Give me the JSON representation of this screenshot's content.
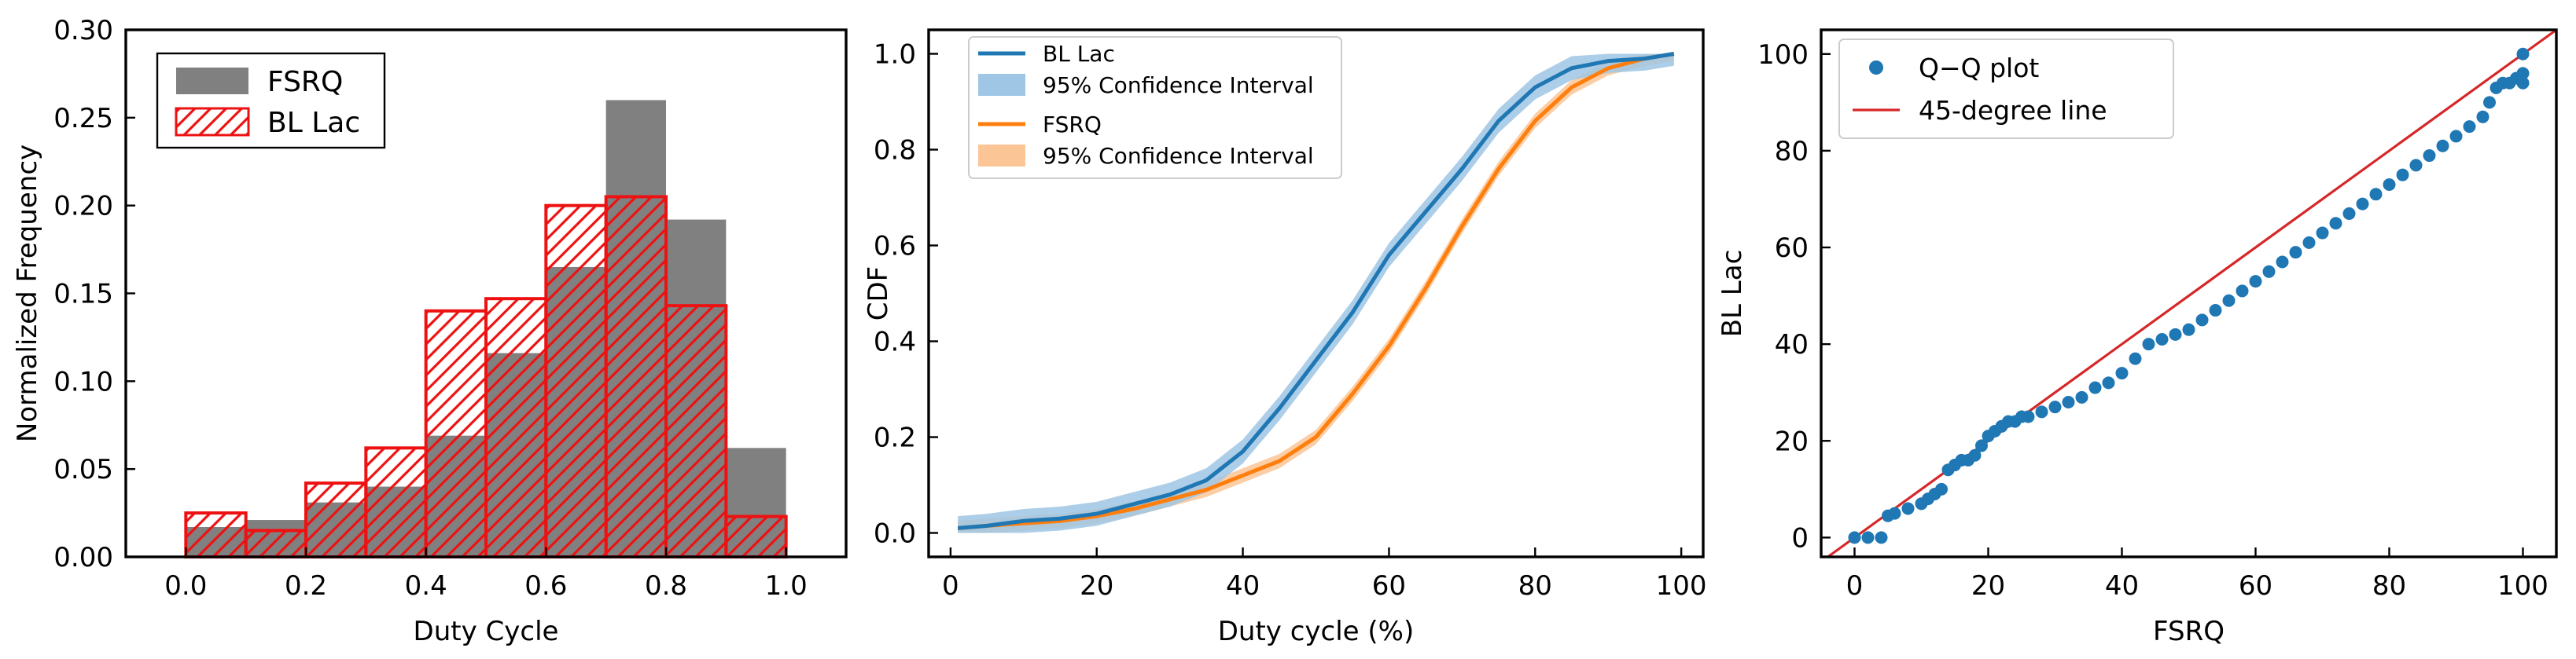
{
  "colors": {
    "fsrq_hist": "#808080",
    "bllac_hist": "#ee1111",
    "blue": "#1f77b4",
    "blue_band": "#9fc6e4",
    "orange": "#ff7f0e",
    "orange_band": "#fcc596",
    "diag_line": "#d62728"
  },
  "chart_data": [
    {
      "type": "bar",
      "xlabel": "Duty Cycle",
      "ylabel": "Normalized Frequency",
      "xlim": [
        -0.1,
        1.1
      ],
      "ylim": [
        0,
        0.3
      ],
      "xticks": [
        "0.0",
        "0.2",
        "0.4",
        "0.6",
        "0.8",
        "1.0"
      ],
      "yticks": [
        "0.00",
        "0.05",
        "0.10",
        "0.15",
        "0.20",
        "0.25",
        "0.30"
      ],
      "bin_edges": [
        0.0,
        0.1,
        0.2,
        0.3,
        0.4,
        0.5,
        0.6,
        0.7,
        0.8,
        0.9,
        1.0
      ],
      "series": [
        {
          "name": "FSRQ",
          "values": [
            0.017,
            0.021,
            0.031,
            0.04,
            0.069,
            0.116,
            0.165,
            0.26,
            0.192,
            0.062
          ]
        },
        {
          "name": "BL Lac",
          "values": [
            0.025,
            0.015,
            0.042,
            0.062,
            0.14,
            0.147,
            0.2,
            0.205,
            0.143,
            0.023
          ]
        }
      ],
      "legend": "top-left"
    },
    {
      "type": "line",
      "xlabel": "Duty cycle (%)",
      "ylabel": "CDF",
      "xlim": [
        -3,
        103
      ],
      "ylim": [
        -0.05,
        1.05
      ],
      "xticks": [
        "0",
        "20",
        "40",
        "60",
        "80",
        "100"
      ],
      "yticks": [
        "0.0",
        "0.2",
        "0.4",
        "0.6",
        "0.8",
        "1.0"
      ],
      "legend_labels": [
        "BL Lac",
        "95% Confidence Interval",
        "FSRQ",
        "95% Confidence Interval"
      ],
      "series": [
        {
          "name": "BL Lac",
          "x": [
            1,
            5,
            10,
            15,
            20,
            25,
            30,
            35,
            40,
            45,
            50,
            55,
            60,
            65,
            70,
            75,
            80,
            85,
            90,
            95,
            99
          ],
          "y": [
            0.01,
            0.015,
            0.025,
            0.03,
            0.04,
            0.06,
            0.08,
            0.11,
            0.17,
            0.26,
            0.36,
            0.46,
            0.58,
            0.67,
            0.76,
            0.86,
            0.93,
            0.97,
            0.985,
            0.99,
            1.0
          ],
          "ci_halfwidth": 0.025
        },
        {
          "name": "FSRQ",
          "x": [
            1,
            5,
            10,
            15,
            20,
            25,
            30,
            35,
            40,
            45,
            50,
            55,
            60,
            65,
            70,
            75,
            80,
            85,
            90,
            95,
            99
          ],
          "y": [
            0.01,
            0.015,
            0.02,
            0.025,
            0.035,
            0.05,
            0.07,
            0.09,
            0.12,
            0.15,
            0.2,
            0.29,
            0.39,
            0.51,
            0.64,
            0.76,
            0.86,
            0.93,
            0.97,
            0.99,
            1.0
          ],
          "ci_halfwidth": 0.015
        }
      ],
      "legend": "top-left"
    },
    {
      "type": "scatter",
      "xlabel": "FSRQ",
      "ylabel": "BL Lac",
      "xlim": [
        -5,
        105
      ],
      "ylim": [
        -4,
        105
      ],
      "xticks": [
        "0",
        "20",
        "40",
        "60",
        "80",
        "100"
      ],
      "yticks": [
        "0",
        "20",
        "40",
        "60",
        "80",
        "100"
      ],
      "legend_labels": [
        "Q−Q plot",
        "45-degree line"
      ],
      "points": {
        "x": [
          0,
          2,
          4,
          5,
          6,
          8,
          10,
          11,
          12,
          13,
          14,
          15,
          16,
          17,
          18,
          19,
          20,
          21,
          22,
          23,
          24,
          25,
          26,
          28,
          30,
          32,
          34,
          36,
          38,
          40,
          42,
          44,
          46,
          48,
          50,
          52,
          54,
          56,
          58,
          60,
          62,
          64,
          66,
          68,
          70,
          72,
          74,
          76,
          78,
          80,
          82,
          84,
          86,
          88,
          90,
          92,
          94,
          95,
          96,
          97,
          98,
          99,
          100,
          100,
          100
        ],
        "y": [
          0,
          0,
          0,
          4.5,
          5,
          6,
          7,
          8,
          9,
          10,
          14,
          15,
          16,
          16,
          17,
          19,
          21,
          22,
          23,
          24,
          24,
          25,
          25,
          26,
          27,
          28,
          29,
          31,
          32,
          34,
          37,
          40,
          41,
          42,
          43,
          45,
          47,
          49,
          51,
          53,
          55,
          57,
          59,
          61,
          63,
          65,
          67,
          69,
          71,
          73,
          75,
          77,
          79,
          81,
          83,
          85,
          87,
          90,
          93,
          94,
          94,
          95,
          94,
          96,
          100
        ]
      },
      "line": {
        "name": "45-degree line",
        "x": [
          -5,
          105
        ],
        "y": [
          -5,
          105
        ]
      },
      "legend": "top-left"
    }
  ]
}
